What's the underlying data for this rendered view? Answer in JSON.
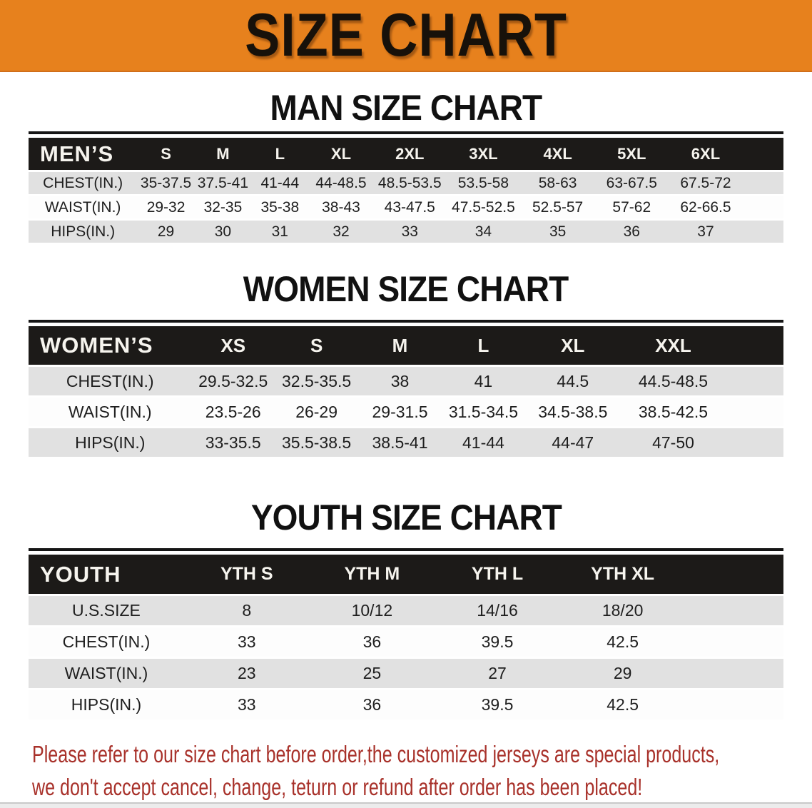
{
  "banner": {
    "title": "SIZE CHART"
  },
  "colors": {
    "banner_bg": "#e7811d",
    "header_bg": "#1c1a18",
    "row_alt_bg": "#e1e1e1",
    "row_bg": "#fdfdfd",
    "title_color": "#111111",
    "disclaimer_red": "#a8312a"
  },
  "tables": {
    "men": {
      "title": "MAN SIZE CHART",
      "corner": "MEN’S",
      "sizes": [
        "S",
        "M",
        "L",
        "XL",
        "2XL",
        "3XL",
        "4XL",
        "5XL",
        "6XL"
      ],
      "rows": [
        {
          "label": "CHEST(IN.)",
          "values": [
            "35-37.5",
            "37.5-41",
            "41-44",
            "44-48.5",
            "48.5-53.5",
            "53.5-58",
            "58-63",
            "63-67.5",
            "67.5-72"
          ]
        },
        {
          "label": "WAIST(IN.)",
          "values": [
            "29-32",
            "32-35",
            "35-38",
            "38-43",
            "43-47.5",
            "47.5-52.5",
            "52.5-57",
            "57-62",
            "62-66.5"
          ]
        },
        {
          "label": "HIPS(IN.)",
          "values": [
            "29",
            "30",
            "31",
            "32",
            "33",
            "34",
            "35",
            "36",
            "37"
          ]
        }
      ]
    },
    "women": {
      "title": "WOMEN SIZE CHART",
      "corner": "WOMEN’S",
      "sizes": [
        "XS",
        "S",
        "M",
        "L",
        "XL",
        "XXL"
      ],
      "rows": [
        {
          "label": "CHEST(IN.)",
          "values": [
            "29.5-32.5",
            "32.5-35.5",
            "38",
            "41",
            "44.5",
            "44.5-48.5"
          ]
        },
        {
          "label": "WAIST(IN.)",
          "values": [
            "23.5-26",
            "26-29",
            "29-31.5",
            "31.5-34.5",
            "34.5-38.5",
            "38.5-42.5"
          ]
        },
        {
          "label": "HIPS(IN.)",
          "values": [
            "33-35.5",
            "35.5-38.5",
            "38.5-41",
            "41-44",
            "44-47",
            "47-50"
          ]
        }
      ]
    },
    "youth": {
      "title": "YOUTH SIZE CHART",
      "corner": "YOUTH",
      "sizes": [
        "YTH S",
        "YTH M",
        "YTH L",
        "YTH XL"
      ],
      "rows": [
        {
          "label": "U.S.SIZE",
          "values": [
            "8",
            "10/12",
            "14/16",
            "18/20"
          ]
        },
        {
          "label": "CHEST(IN.)",
          "values": [
            "33",
            "36",
            "39.5",
            "42.5"
          ]
        },
        {
          "label": "WAIST(IN.)",
          "values": [
            "23",
            "25",
            "27",
            "29"
          ]
        },
        {
          "label": "HIPS(IN.)",
          "values": [
            "33",
            "36",
            "39.5",
            "42.5"
          ]
        }
      ]
    }
  },
  "disclaimer": {
    "line1": "Please refer to our size chart before order,the customized jerseys are special products,",
    "line2": "we don't accept cancel, change, teturn or refund after order has been placed!"
  }
}
